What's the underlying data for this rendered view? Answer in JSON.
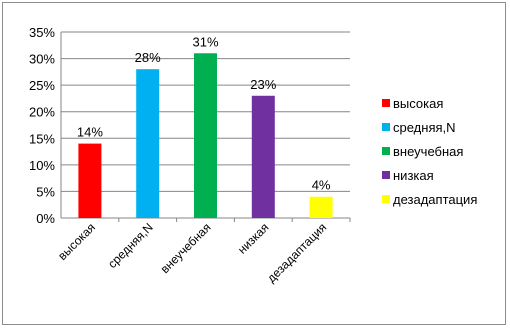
{
  "chart_data": {
    "type": "bar",
    "categories": [
      "высокая",
      "средняя,N",
      "внеучебная",
      "низкая",
      "дезадаптация"
    ],
    "values": [
      14,
      28,
      31,
      23,
      4
    ],
    "data_labels": [
      "14%",
      "28%",
      "31%",
      "23%",
      "4%"
    ],
    "colors": [
      "#ff0000",
      "#00b0f0",
      "#00b050",
      "#7030a0",
      "#ffff00"
    ],
    "ylim": [
      0,
      35
    ],
    "yticks": [
      0,
      5,
      10,
      15,
      20,
      25,
      30,
      35
    ],
    "ytick_labels": [
      "0%",
      "5%",
      "10%",
      "15%",
      "20%",
      "25%",
      "30%",
      "35%"
    ],
    "grid": true,
    "legend": {
      "position": "right",
      "entries": [
        "высокая",
        "средняя,N",
        "внеучебная",
        "низкая",
        "дезадаптация"
      ]
    },
    "title": "",
    "xlabel": "",
    "ylabel": ""
  }
}
